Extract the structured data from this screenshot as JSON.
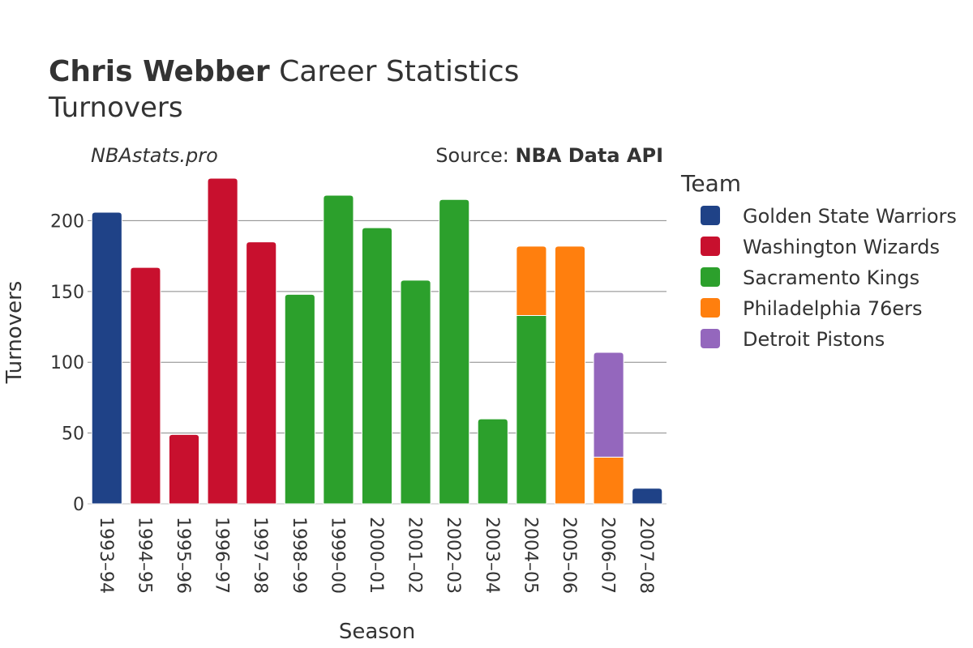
{
  "header": {
    "player_name": "Chris Webber",
    "title_rest": " Career Statistics",
    "subtitle": "Turnovers",
    "watermark": "NBAstats.pro",
    "source_prefix": "Source: ",
    "source_name": "NBA Data API"
  },
  "legend": {
    "title": "Team"
  },
  "chart_data": {
    "type": "bar",
    "stacked": true,
    "title": "Chris Webber Career Statistics",
    "subtitle": "Turnovers",
    "xlabel": "Season",
    "ylabel": "Turnovers",
    "ylim": [
      0,
      230
    ],
    "yticks": [
      0,
      50,
      100,
      150,
      200
    ],
    "grid": true,
    "legend_position": "right",
    "categories": [
      "1993–94",
      "1994–95",
      "1995–96",
      "1996–97",
      "1997–98",
      "1998–99",
      "1999–00",
      "2000–01",
      "2001–02",
      "2002–03",
      "2003–04",
      "2004–05",
      "2005–06",
      "2006–07",
      "2007–08"
    ],
    "series": [
      {
        "name": "Golden State Warriors",
        "color": "#1f4287",
        "values": [
          206,
          0,
          0,
          0,
          0,
          0,
          0,
          0,
          0,
          0,
          0,
          0,
          0,
          0,
          11
        ]
      },
      {
        "name": "Washington Wizards",
        "color": "#c8102e",
        "values": [
          0,
          167,
          49,
          230,
          185,
          0,
          0,
          0,
          0,
          0,
          0,
          0,
          0,
          0,
          0
        ]
      },
      {
        "name": "Sacramento Kings",
        "color": "#2ca02c",
        "values": [
          0,
          0,
          0,
          0,
          0,
          148,
          218,
          195,
          158,
          215,
          60,
          133,
          0,
          0,
          0
        ]
      },
      {
        "name": "Philadelphia 76ers",
        "color": "#ff7f0e",
        "values": [
          0,
          0,
          0,
          0,
          0,
          0,
          0,
          0,
          0,
          0,
          0,
          49,
          182,
          33,
          0
        ]
      },
      {
        "name": "Detroit Pistons",
        "color": "#9467bd",
        "values": [
          0,
          0,
          0,
          0,
          0,
          0,
          0,
          0,
          0,
          0,
          0,
          0,
          0,
          74,
          0
        ]
      }
    ]
  }
}
